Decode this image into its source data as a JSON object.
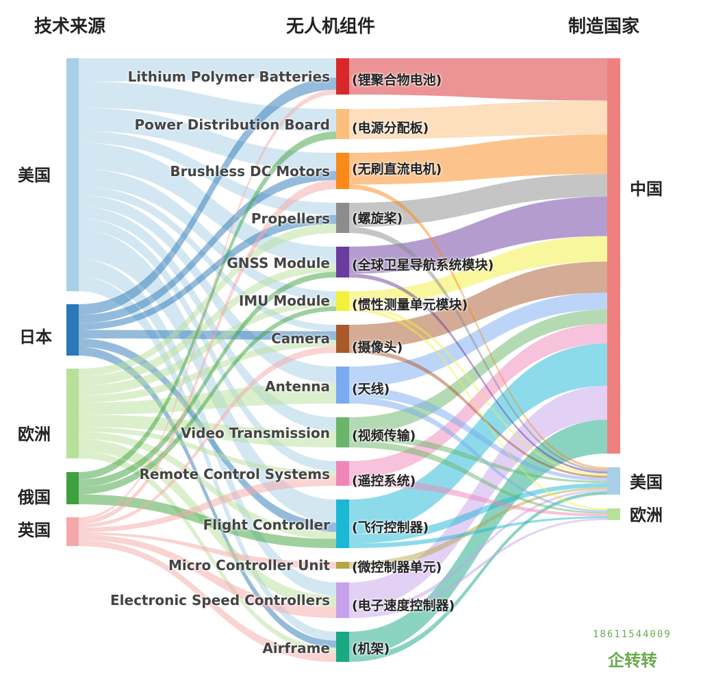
{
  "titles": {
    "source": "技术来源",
    "component": "无人机组件",
    "maker": "制造国家"
  },
  "sources": [
    {
      "id": "us",
      "label": "美国",
      "color": "#a8cfe6"
    },
    {
      "id": "jp",
      "label": "日本",
      "color": "#2a78b8"
    },
    {
      "id": "eu",
      "label": "欧洲",
      "color": "#b7e09a"
    },
    {
      "id": "ru",
      "label": "俄国",
      "color": "#3ea13e"
    },
    {
      "id": "uk",
      "label": "英国",
      "color": "#f5a8a8"
    }
  ],
  "components": [
    {
      "id": "lipo",
      "en": "Lithium Polymer Batteries",
      "cn": "(锂聚合物电池)",
      "color": "#d8282b"
    },
    {
      "id": "pdb",
      "en": "Power Distribution Board",
      "cn": "(电源分配板)",
      "color": "#fbbf7b"
    },
    {
      "id": "bldc",
      "en": "Brushless DC Motors",
      "cn": "(无刷直流电机)",
      "color": "#f98a1a"
    },
    {
      "id": "prop",
      "en": "Propellers",
      "cn": "(螺旋桨)",
      "color": "#8c8c8c"
    },
    {
      "id": "gnss",
      "en": "GNSS Module",
      "cn": "(全球卫星导航系统模块)",
      "color": "#6a3c9d"
    },
    {
      "id": "imu",
      "en": "IMU Module",
      "cn": "(惯性测量单元模块)",
      "color": "#f4f03c"
    },
    {
      "id": "cam",
      "en": "Camera",
      "cn": "(摄像头)",
      "color": "#a9582a"
    },
    {
      "id": "ant",
      "en": "Antenna",
      "cn": "(天线)",
      "color": "#7aaaf0"
    },
    {
      "id": "vtx",
      "en": "Video Transmission",
      "cn": "(视频传输)",
      "color": "#6ab56a"
    },
    {
      "id": "rc",
      "en": "Remote Control Systems",
      "cn": "(遥控系统)",
      "color": "#ef86b7"
    },
    {
      "id": "fc",
      "en": "Flight Controller",
      "cn": "(飞行控制器)",
      "color": "#1bb8d6"
    },
    {
      "id": "mcu",
      "en": "Micro Controller Unit",
      "cn": "(微控制器单元)",
      "color": "#b5a548"
    },
    {
      "id": "esc",
      "en": "Electronic Speed Controllers",
      "cn": "(电子速度控制器)",
      "color": "#c6a2ec"
    },
    {
      "id": "frame",
      "en": "Airframe",
      "cn": "(机架)",
      "color": "#18a884"
    }
  ],
  "makers": [
    {
      "id": "cn",
      "label": "中国",
      "color": "#f08080"
    },
    {
      "id": "mus",
      "label": "美国",
      "color": "#a8cfe6"
    },
    {
      "id": "meu",
      "label": "欧洲",
      "color": "#b7e09a"
    }
  ],
  "links_left": [
    [
      "us",
      "lipo",
      8
    ],
    [
      "us",
      "pdb",
      9
    ],
    [
      "us",
      "bldc",
      8
    ],
    [
      "us",
      "prop",
      4
    ],
    [
      "us",
      "gnss",
      9
    ],
    [
      "us",
      "imu",
      6
    ],
    [
      "us",
      "cam",
      3
    ],
    [
      "us",
      "ant",
      4
    ],
    [
      "us",
      "vtx",
      4
    ],
    [
      "us",
      "rc",
      4
    ],
    [
      "us",
      "fc",
      10
    ],
    [
      "us",
      "esc",
      6
    ],
    [
      "us",
      "frame",
      5
    ],
    [
      "jp",
      "lipo",
      5
    ],
    [
      "jp",
      "bldc",
      4
    ],
    [
      "jp",
      "prop",
      3
    ],
    [
      "jp",
      "cam",
      4
    ],
    [
      "jp",
      "fc",
      4
    ],
    [
      "jp",
      "frame",
      4
    ],
    [
      "eu",
      "prop",
      3
    ],
    [
      "eu",
      "gnss",
      4
    ],
    [
      "eu",
      "imu",
      4
    ],
    [
      "eu",
      "cam",
      3
    ],
    [
      "eu",
      "ant",
      5
    ],
    [
      "eu",
      "vtx",
      5
    ],
    [
      "eu",
      "rc",
      2
    ],
    [
      "eu",
      "fc",
      3
    ],
    [
      "eu",
      "esc",
      5
    ],
    [
      "eu",
      "frame",
      3
    ],
    [
      "ru",
      "pdb",
      3
    ],
    [
      "ru",
      "gnss",
      3
    ],
    [
      "ru",
      "imu",
      3
    ],
    [
      "ru",
      "fc",
      4
    ],
    [
      "uk",
      "lipo",
      2
    ],
    [
      "uk",
      "bldc",
      4
    ],
    [
      "uk",
      "cam",
      3
    ],
    [
      "uk",
      "rc",
      4
    ],
    [
      "uk",
      "mcu",
      2
    ],
    [
      "uk",
      "esc",
      5
    ],
    [
      "uk",
      "frame",
      5
    ]
  ],
  "links_right": [
    [
      "lipo",
      "cn",
      15
    ],
    [
      "pdb",
      "cn",
      12
    ],
    [
      "bldc",
      "cn",
      14
    ],
    [
      "prop",
      "cn",
      8
    ],
    [
      "gnss",
      "cn",
      14
    ],
    [
      "imu",
      "cn",
      9
    ],
    [
      "cam",
      "cn",
      11
    ],
    [
      "ant",
      "cn",
      6
    ],
    [
      "vtx",
      "cn",
      5
    ],
    [
      "rc",
      "cn",
      7
    ],
    [
      "fc",
      "cn",
      15
    ],
    [
      "esc",
      "cn",
      12
    ],
    [
      "frame",
      "cn",
      12
    ],
    [
      "bldc",
      "mus",
      2
    ],
    [
      "prop",
      "mus",
      2
    ],
    [
      "gnss",
      "mus",
      2
    ],
    [
      "imu",
      "mus",
      2
    ],
    [
      "cam",
      "mus",
      2
    ],
    [
      "ant",
      "mus",
      3
    ],
    [
      "vtx",
      "mus",
      2
    ],
    [
      "fc",
      "mus",
      4
    ],
    [
      "mcu",
      "mus",
      2
    ],
    [
      "esc",
      "mus",
      2
    ],
    [
      "frame",
      "mus",
      3
    ],
    [
      "imu",
      "meu",
      2
    ],
    [
      "ant",
      "meu",
      2
    ],
    [
      "vtx",
      "meu",
      2
    ],
    [
      "rc",
      "meu",
      3
    ],
    [
      "fc",
      "meu",
      2
    ],
    [
      "esc",
      "meu",
      2
    ]
  ],
  "watermark": {
    "phone": "18611544009",
    "logo": "企转转"
  }
}
